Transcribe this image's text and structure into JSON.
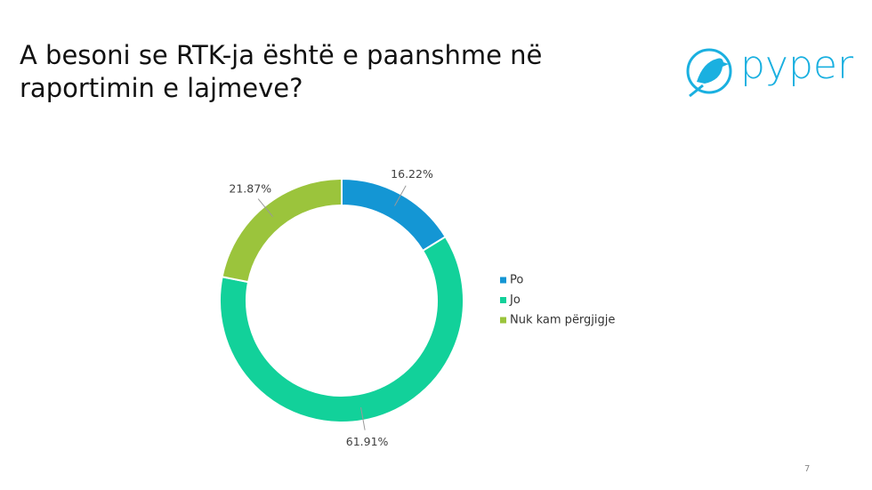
{
  "chart_data": {
    "type": "donut",
    "title": [
      "A besoni se RTK-ja është e paanshme në",
      "raportimin e lajmeve?"
    ],
    "categories": [
      "Po",
      "Jo",
      "Nuk kam përgjigje"
    ],
    "values": [
      16.22,
      61.91,
      21.87
    ],
    "value_labels": [
      "16.22%",
      "61.91%",
      "21.87%"
    ],
    "colors": [
      "#1496d4",
      "#12d19a",
      "#9bc43c"
    ],
    "legend": "right"
  },
  "logo_text": "pyper",
  "page_number": "7"
}
